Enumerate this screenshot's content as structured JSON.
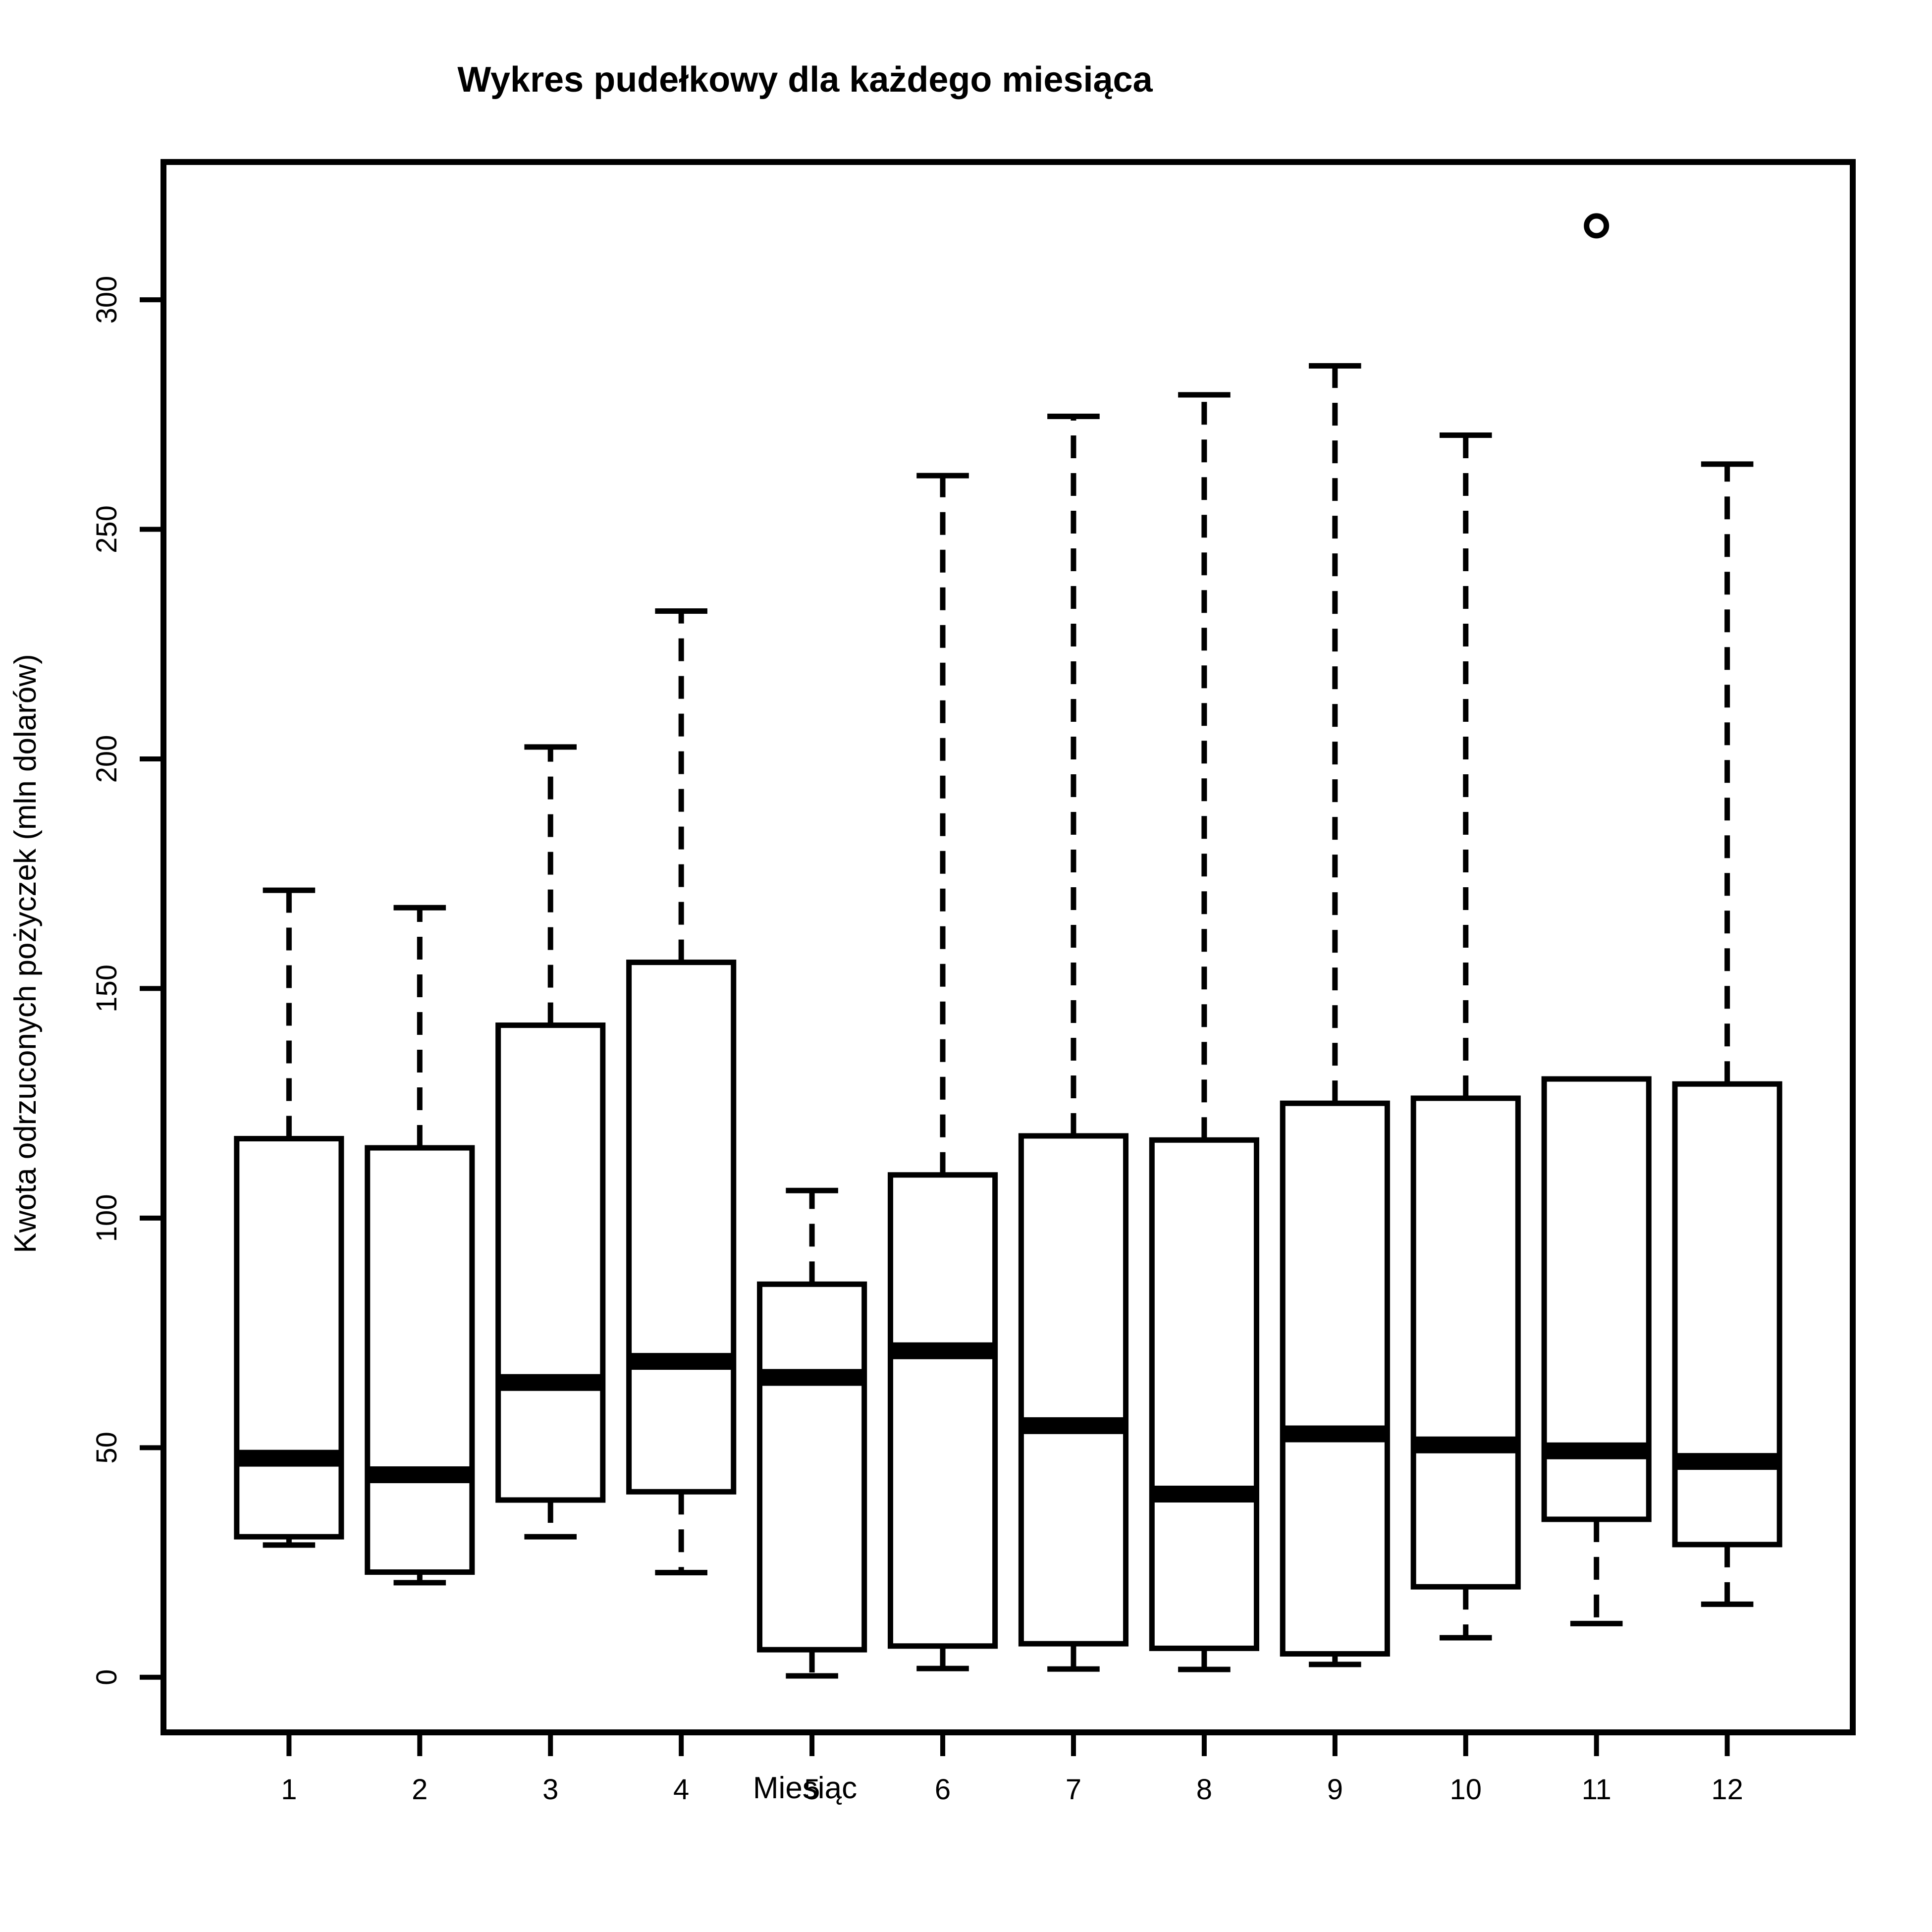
{
  "chart_data": {
    "type": "boxplot",
    "title": "Wykres pudełkowy dla każdego miesiąca",
    "xlabel": "Miesiąc",
    "ylabel": "Kwota odrzuconych pożyczek (mln dolarów)",
    "categories": [
      "1",
      "2",
      "3",
      "4",
      "5",
      "6",
      "7",
      "8",
      "9",
      "10",
      "11",
      "12"
    ],
    "ylim": [
      -12,
      330
    ],
    "yticks": [
      0,
      50,
      100,
      150,
      200,
      250,
      300
    ],
    "ytick_labels": [
      "0",
      "50",
      "100",
      "150",
      "200",
      "250",
      "300"
    ],
    "grid": false,
    "legend": "none",
    "boxes": [
      {
        "month": "1",
        "min": 28.8,
        "q1": 30.6,
        "median": 47.7,
        "q3": 117.3,
        "max": 171.4,
        "outliers": []
      },
      {
        "month": "2",
        "min": 20.6,
        "q1": 22.9,
        "median": 44.1,
        "q3": 115.3,
        "max": 167.6,
        "outliers": []
      },
      {
        "month": "3",
        "min": 30.6,
        "q1": 38.6,
        "median": 64.2,
        "q3": 142.0,
        "max": 202.6,
        "outliers": []
      },
      {
        "month": "4",
        "min": 22.8,
        "q1": 40.4,
        "median": 68.8,
        "q3": 155.7,
        "max": 232.2,
        "outliers": []
      },
      {
        "month": "5",
        "min": 0.3,
        "q1": 6.0,
        "median": 65.3,
        "q3": 85.6,
        "max": 106.0,
        "outliers": []
      },
      {
        "month": "6",
        "min": 1.9,
        "q1": 6.8,
        "median": 71.1,
        "q3": 109.4,
        "max": 261.7,
        "outliers": []
      },
      {
        "month": "7",
        "min": 1.8,
        "q1": 7.3,
        "median": 54.8,
        "q3": 117.9,
        "max": 274.6,
        "outliers": []
      },
      {
        "month": "8",
        "min": 1.7,
        "q1": 6.3,
        "median": 39.9,
        "q3": 117.0,
        "max": 279.3,
        "outliers": []
      },
      {
        "month": "9",
        "min": 2.8,
        "q1": 5.1,
        "median": 53.0,
        "q3": 125.0,
        "max": 285.6,
        "outliers": []
      },
      {
        "month": "10",
        "min": 8.6,
        "q1": 19.7,
        "median": 50.6,
        "q3": 126.1,
        "max": 270.5,
        "outliers": []
      },
      {
        "month": "11",
        "min": 11.7,
        "q1": 34.4,
        "median": 49.3,
        "q3": 130.3,
        "max": 130.3,
        "outliers": [
          316.1
        ]
      },
      {
        "month": "12",
        "min": 15.9,
        "q1": 28.9,
        "median": 47.0,
        "q3": 129.2,
        "max": 264.2,
        "outliers": []
      }
    ]
  }
}
